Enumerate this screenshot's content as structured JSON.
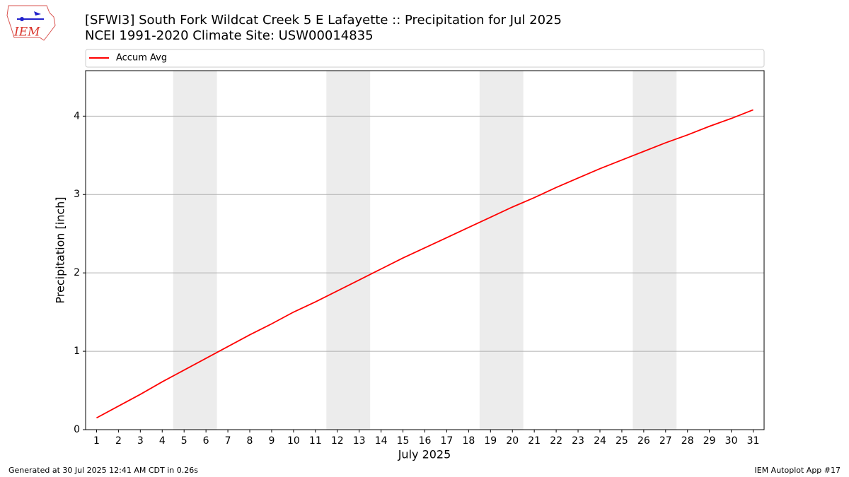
{
  "logo_text": "IEM",
  "chart_data": {
    "type": "line",
    "title": "[SFWI3] South Fork Wildcat Creek 5 E Lafayette :: Precipitation for Jul 2025",
    "subtitle": "NCEI 1991-2020 Climate Site: USW00014835",
    "xlabel": "July 2025",
    "ylabel": "Precipitation [inch]",
    "x": [
      1,
      2,
      3,
      4,
      5,
      6,
      7,
      8,
      9,
      10,
      11,
      12,
      13,
      14,
      15,
      16,
      17,
      18,
      19,
      20,
      21,
      22,
      23,
      24,
      25,
      26,
      27,
      28,
      29,
      30,
      31
    ],
    "series": [
      {
        "name": "Accum Avg",
        "color": "#ff0000",
        "values": [
          0.15,
          0.3,
          0.45,
          0.61,
          0.76,
          0.91,
          1.06,
          1.21,
          1.35,
          1.5,
          1.63,
          1.77,
          1.91,
          2.05,
          2.19,
          2.32,
          2.45,
          2.58,
          2.71,
          2.84,
          2.96,
          3.09,
          3.21,
          3.33,
          3.44,
          3.55,
          3.66,
          3.76,
          3.87,
          3.97,
          4.08
        ]
      }
    ],
    "xlim": [
      0.5,
      31.5
    ],
    "ylim": [
      0,
      4.58
    ],
    "xticks": [
      1,
      2,
      3,
      4,
      5,
      6,
      7,
      8,
      9,
      10,
      11,
      12,
      13,
      14,
      15,
      16,
      17,
      18,
      19,
      20,
      21,
      22,
      23,
      24,
      25,
      26,
      27,
      28,
      29,
      30,
      31
    ],
    "yticks": [
      0,
      1,
      2,
      3,
      4
    ],
    "shaded_spans": [
      [
        4.5,
        6.5
      ],
      [
        11.5,
        13.5
      ],
      [
        18.5,
        20.5
      ],
      [
        25.5,
        27.5
      ]
    ],
    "shade_color": "#ececec",
    "grid": "y",
    "legend": "top"
  },
  "footer": {
    "left": "Generated at 30 Jul 2025 12:41 AM CDT in 0.26s",
    "right": "IEM Autoplot App #17"
  }
}
